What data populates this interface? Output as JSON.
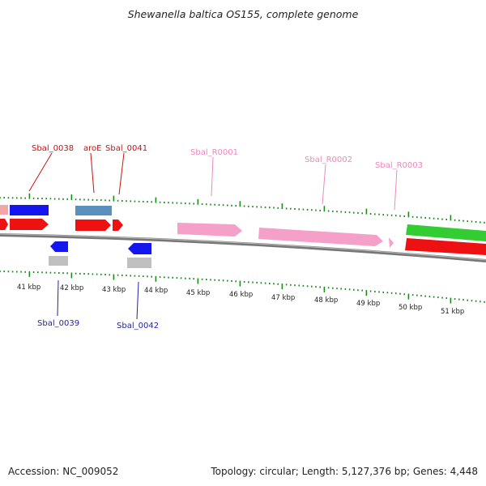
{
  "header": {
    "title": "Shewanella baltica OS155, complete genome"
  },
  "footer": {
    "accession": "Accession: NC_009052",
    "summary": "Topology: circular; Length: 5,127,376 bp; Genes: 4,448"
  },
  "colors": {
    "cds": "#ee1111",
    "cds_reverse": "#1515ee",
    "rrna": "#f5a0c8",
    "gene_blue": "#5a90c0",
    "pseudo_gray": "#c0c0c0",
    "green": "#33cc33",
    "tick": "#1a8a1a",
    "backbone": "#777777",
    "label_red": "#cc1111",
    "label_blue": "#2222aa",
    "label_pink": "#ee88bb"
  },
  "gene_labels": [
    {
      "id": "lbl-sbal-0038",
      "text": "Sbal_0038",
      "color": "label_red"
    },
    {
      "id": "lbl-aroe",
      "text": "aroE",
      "color": "label_red"
    },
    {
      "id": "lbl-sbal-0041",
      "text": "Sbal_0041",
      "color": "label_red"
    },
    {
      "id": "lbl-sbal-r0001",
      "text": "Sbal_R0001",
      "color": "label_pink"
    },
    {
      "id": "lbl-sbal-r0002",
      "text": "Sbal_R0002",
      "color": "label_pink"
    },
    {
      "id": "lbl-sbal-r0003",
      "text": "Sbal_R0003",
      "color": "label_pink"
    },
    {
      "id": "lbl-sbal-0039",
      "text": "Sbal_0039",
      "color": "label_blue"
    },
    {
      "id": "lbl-sbal-0042",
      "text": "Sbal_0042",
      "color": "label_blue"
    }
  ],
  "scale_labels": [
    "41 kbp",
    "42 kbp",
    "43 kbp",
    "44 kbp",
    "45 kbp",
    "46 kbp",
    "47 kbp",
    "48 kbp",
    "49 kbp",
    "50 kbp",
    "51 kbp"
  ]
}
